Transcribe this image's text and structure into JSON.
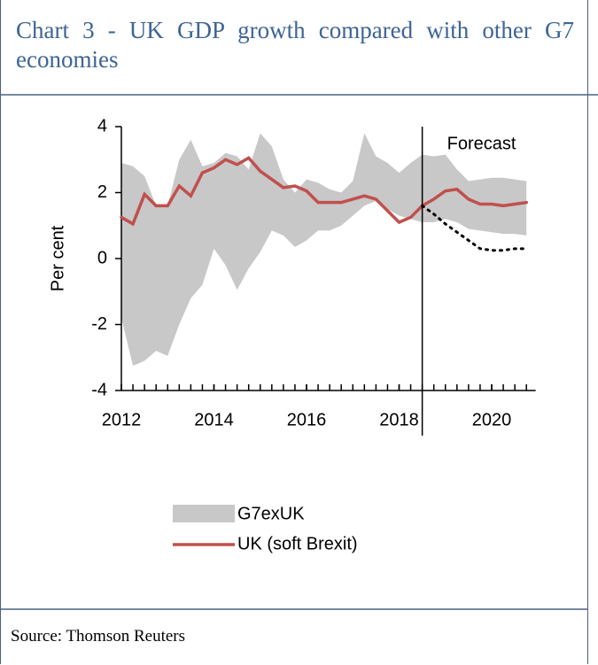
{
  "header": {
    "title": "Chart 3 - UK GDP growth compared with other G7 economies"
  },
  "chart_data": {
    "type": "line",
    "y_label": "Per cent",
    "x": [
      2012,
      2012.25,
      2012.5,
      2012.75,
      2013,
      2013.25,
      2013.5,
      2013.75,
      2014,
      2014.25,
      2014.5,
      2014.75,
      2015,
      2015.25,
      2015.5,
      2015.75,
      2016,
      2016.25,
      2016.5,
      2016.75,
      2017,
      2017.25,
      2017.5,
      2017.75,
      2018,
      2018.25,
      2018.5,
      2018.75,
      2019,
      2019.25,
      2019.5,
      2019.75,
      2020,
      2020.25,
      2020.5,
      2020.75
    ],
    "series": [
      {
        "name": "G7exUK",
        "color": "#c8c8c8",
        "values": [
          2.9,
          2.8,
          2.5,
          1.6,
          1.6,
          3.0,
          3.6,
          2.8,
          2.9,
          3.2,
          3.1,
          2.7,
          3.8,
          3.4,
          2.4,
          2.0,
          2.4,
          2.3,
          2.1,
          2.0,
          2.35,
          3.8,
          3.1,
          2.9,
          2.6,
          2.9,
          3.15,
          3.1,
          3.15,
          2.7,
          2.35,
          2.4,
          2.45,
          2.45,
          2.4,
          2.35
        ],
        "lower": [
          -1.8,
          -3.25,
          -3.1,
          -2.8,
          -2.95,
          -2.0,
          -1.2,
          -0.8,
          0.3,
          -0.2,
          -0.95,
          -0.3,
          0.2,
          0.85,
          0.7,
          0.35,
          0.55,
          0.85,
          0.85,
          1.0,
          1.3,
          1.6,
          1.75,
          1.5,
          1.3,
          1.2,
          1.1,
          1.1,
          1.2,
          1.1,
          0.9,
          0.85,
          0.8,
          0.75,
          0.75,
          0.7
        ]
      },
      {
        "name": "UK (soft Brexit)",
        "color": "#c0504d",
        "values": [
          1.25,
          1.05,
          1.95,
          1.6,
          1.6,
          2.2,
          1.9,
          2.6,
          2.75,
          3.0,
          2.85,
          3.05,
          2.65,
          2.4,
          2.15,
          2.2,
          2.05,
          1.7,
          1.7,
          1.7,
          1.8,
          1.9,
          1.8,
          1.45,
          1.1,
          1.25,
          1.6,
          1.8,
          2.05,
          2.1,
          1.8,
          1.65,
          1.65,
          1.6,
          1.65,
          1.7
        ]
      },
      {
        "color": "#000000",
        "style": "dotted",
        "x": [
          2018.5,
          2018.75,
          2019,
          2019.25,
          2019.5,
          2019.75,
          2020,
          2020.25,
          2020.5,
          2020.75
        ],
        "values": [
          1.6,
          1.35,
          1.05,
          0.8,
          0.55,
          0.3,
          0.25,
          0.25,
          0.3,
          0.3
        ]
      }
    ],
    "annotation": {
      "text": "Forecast",
      "x": 2018.5
    },
    "xlim": [
      2012,
      2020.95
    ],
    "xticks": [
      2012,
      2014,
      2016,
      2018,
      2020
    ],
    "ylim": [
      -4,
      4
    ],
    "yticks": [
      -4,
      -2,
      0,
      2,
      4
    ]
  },
  "footer": {
    "source": "Source: Thomson Reuters"
  }
}
